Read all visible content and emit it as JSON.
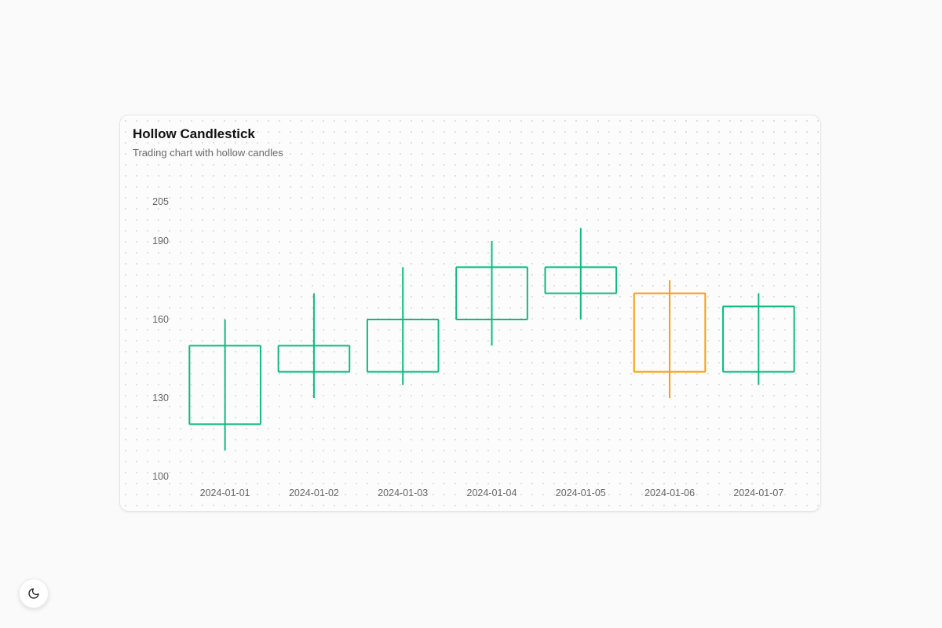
{
  "card": {
    "title": "Hollow Candlestick",
    "subtitle": "Trading chart with hollow candles"
  },
  "theme_toggle": {
    "icon": "moon-icon"
  },
  "colors": {
    "up": "#10b981",
    "down": "#f59e0b",
    "tick_text": "#666666"
  },
  "chart_data": {
    "type": "candlestick",
    "style": "hollow",
    "title": "Hollow Candlestick",
    "subtitle": "Trading chart with hollow candles",
    "categories": [
      "2024-01-01",
      "2024-01-02",
      "2024-01-03",
      "2024-01-04",
      "2024-01-05",
      "2024-01-06",
      "2024-01-07"
    ],
    "open": [
      120,
      140,
      140,
      160,
      170,
      170,
      140
    ],
    "high": [
      160,
      170,
      180,
      190,
      195,
      175,
      170
    ],
    "low": [
      110,
      130,
      135,
      150,
      160,
      130,
      135
    ],
    "close": [
      150,
      150,
      160,
      180,
      180,
      140,
      165
    ],
    "y_ticks": [
      100,
      130,
      160,
      190,
      205
    ],
    "ylim": [
      100,
      205
    ],
    "grid": false,
    "legend": "none"
  }
}
